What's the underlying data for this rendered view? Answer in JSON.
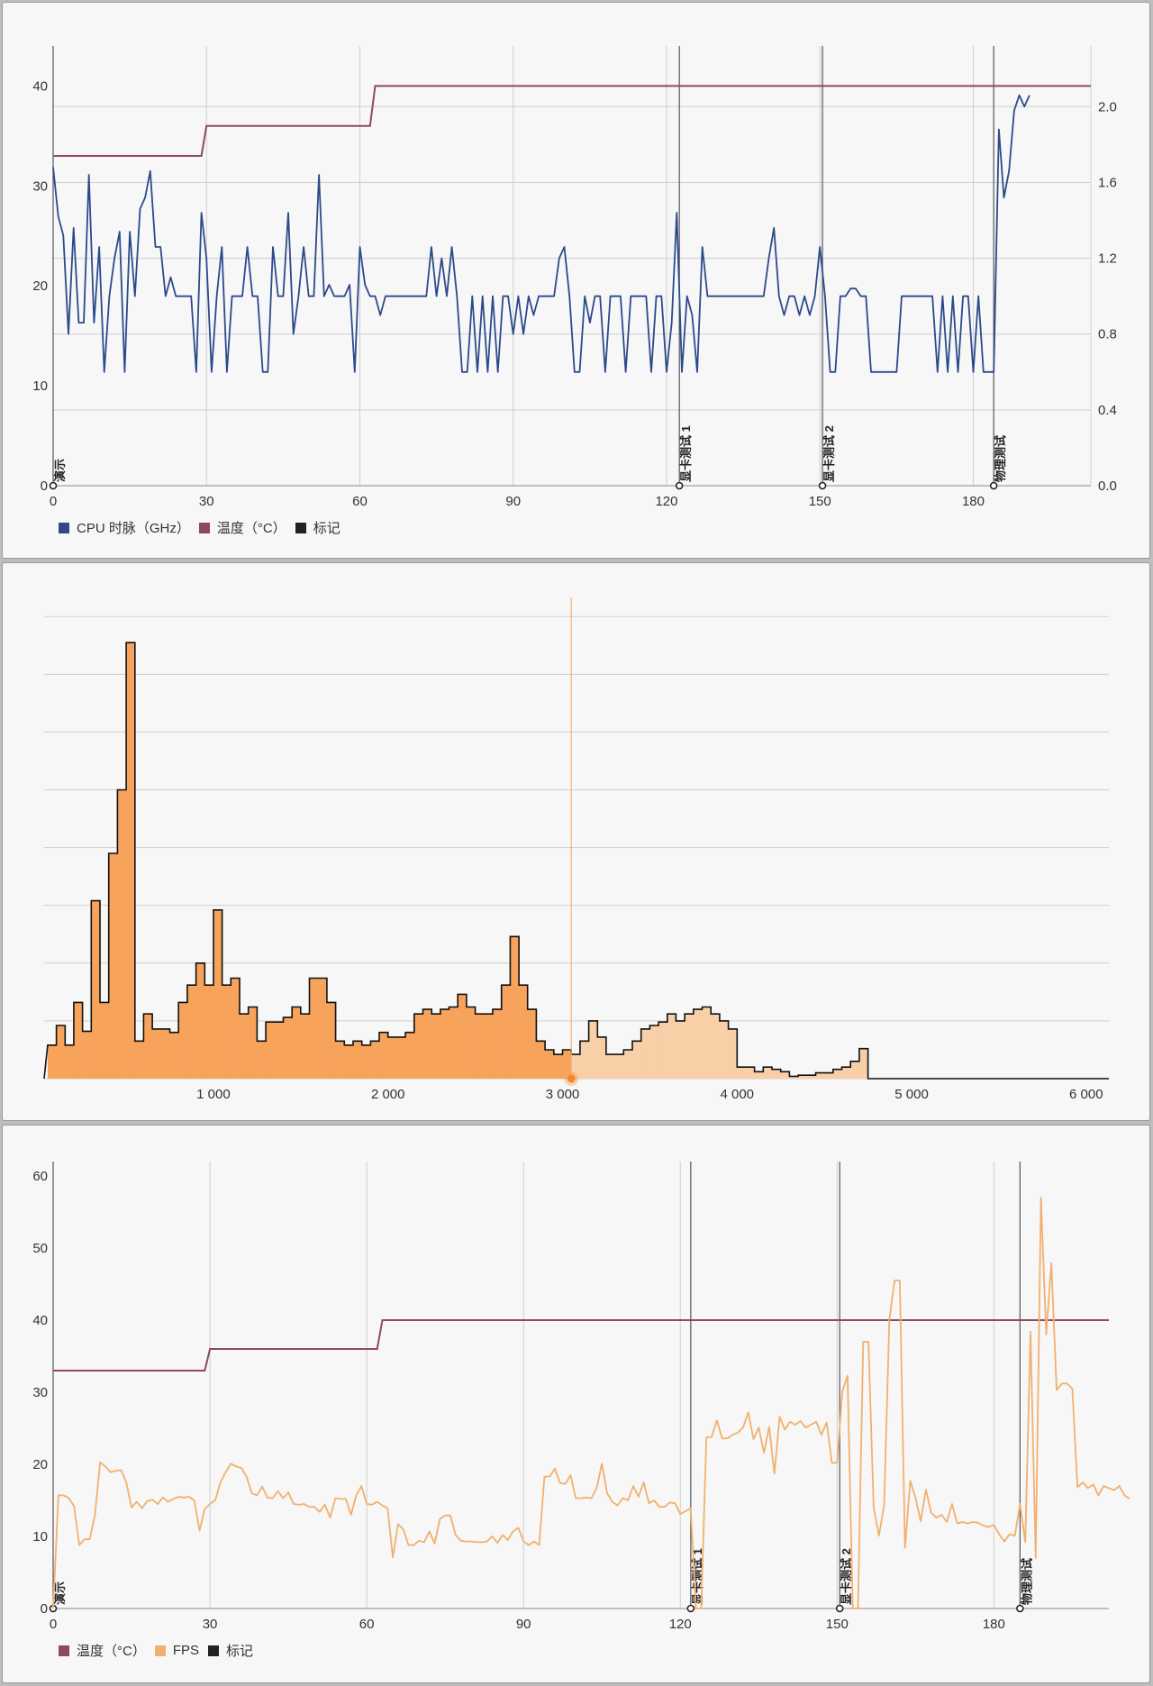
{
  "colors": {
    "cpu": "#2b4a8b",
    "temperature": "#8e4a5a",
    "marker": "#222222",
    "fps": "#f2b06e",
    "hist_dark": "#f7a35c",
    "hist_light": "#f9cfa7",
    "grid": "#cfcfcf"
  },
  "legend_top": [
    {
      "label": "CPU 时脉（GHz）",
      "color": "#2b4a8b"
    },
    {
      "label": "温度（°C）",
      "color": "#8e4a5a"
    },
    {
      "label": "标记",
      "color": "#222222"
    }
  ],
  "legend_bottom": [
    {
      "label": "温度（°C）",
      "color": "#8e4a5a"
    },
    {
      "label": "FPS",
      "color": "#f2b06e"
    },
    {
      "label": "标记",
      "color": "#222222"
    }
  ],
  "chart_data": [
    {
      "type": "line",
      "x_ticks": [
        "0",
        "30",
        "60",
        "90",
        "120",
        "150",
        "180"
      ],
      "xlim": [
        0,
        203
      ],
      "y_left_ticks": [
        "0",
        "10",
        "20",
        "30",
        "40"
      ],
      "ylim_left": [
        0,
        44
      ],
      "y_right_ticks": [
        "0.0",
        "0.4",
        "0.8",
        "1.2",
        "1.6",
        "2.0"
      ],
      "ylim_right": [
        0,
        2.32
      ],
      "grid": true,
      "legend_position": "bottom-left",
      "markers": [
        {
          "x": 0,
          "label": "演示"
        },
        {
          "x": 122.5,
          "label": "显卡测试 1"
        },
        {
          "x": 150.5,
          "label": "显卡测试 2"
        },
        {
          "x": 184,
          "label": "物理测试"
        }
      ],
      "series": [
        {
          "name": "温度（°C）",
          "axis": "left",
          "x": [
            0,
            29,
            30,
            62,
            63,
            203
          ],
          "values": [
            33,
            33,
            36,
            36,
            40,
            40
          ]
        },
        {
          "name": "CPU 时脉（GHz）",
          "axis": "right",
          "values": [
            1.68,
            1.42,
            1.32,
            0.8,
            1.36,
            0.86,
            0.86,
            1.64,
            0.86,
            1.26,
            0.6,
            1.0,
            1.2,
            1.34,
            0.6,
            1.34,
            1.0,
            1.46,
            1.52,
            1.66,
            1.26,
            1.26,
            1.0,
            1.1,
            1.0,
            1.0,
            1.0,
            1.0,
            0.6,
            1.44,
            1.2,
            0.6,
            1.0,
            1.26,
            0.6,
            1.0,
            1.0,
            1.0,
            1.26,
            1.0,
            1.0,
            0.6,
            0.6,
            1.26,
            1.0,
            1.0,
            1.44,
            0.8,
            1.0,
            1.26,
            1.0,
            1.0,
            1.64,
            1.0,
            1.06,
            1.0,
            1.0,
            1.0,
            1.06,
            0.6,
            1.26,
            1.06,
            1.0,
            1.0,
            0.9,
            1.0,
            1.0,
            1.0,
            1.0,
            1.0,
            1.0,
            1.0,
            1.0,
            1.0,
            1.26,
            1.0,
            1.2,
            1.0,
            1.26,
            1.0,
            0.6,
            0.6,
            1.0,
            0.6,
            1.0,
            0.6,
            1.0,
            0.6,
            1.0,
            1.0,
            0.8,
            1.0,
            0.8,
            1.0,
            0.9,
            1.0,
            1.0,
            1.0,
            1.0,
            1.2,
            1.26,
            1.0,
            0.6,
            0.6,
            1.0,
            0.86,
            1.0,
            1.0,
            0.6,
            1.0,
            1.0,
            1.0,
            0.6,
            1.0,
            1.0,
            1.0,
            1.0,
            0.6,
            1.0,
            1.0,
            0.6,
            0.86,
            1.44,
            0.6,
            1.0,
            0.9,
            0.6,
            1.26,
            1.0,
            1.0,
            1.0,
            1.0,
            1.0,
            1.0,
            1.0,
            1.0,
            1.0,
            1.0,
            1.0,
            1.0,
            1.2,
            1.36,
            1.0,
            0.9,
            1.0,
            1.0,
            0.9,
            1.0,
            0.9,
            1.0,
            1.26,
            1.0,
            0.6,
            0.6,
            1.0,
            1.0,
            1.04,
            1.04,
            1.0,
            1.0,
            0.6,
            0.6,
            0.6,
            0.6,
            0.6,
            0.6,
            1.0,
            1.0,
            1.0,
            1.0,
            1.0,
            1.0,
            1.0,
            0.6,
            1.0,
            0.6,
            1.0,
            0.6,
            1.0,
            1.0,
            0.6,
            1.0,
            0.6,
            0.6,
            0.6,
            1.88,
            1.52,
            1.66,
            1.98,
            2.06,
            2.0,
            2.06
          ]
        }
      ]
    },
    {
      "type": "area",
      "x_ticks": [
        "1 000",
        "2 000",
        "3 000",
        "4 000",
        "5 000",
        "6 000"
      ],
      "xlim": [
        30,
        6130
      ],
      "ylim": [
        0,
        8.3
      ],
      "grid": true,
      "highlight_x": 3050,
      "bin_width": 50,
      "values": [
        0.58,
        0.92,
        0.58,
        1.32,
        0.82,
        3.08,
        1.32,
        3.9,
        5.0,
        7.55,
        0.65,
        1.12,
        0.86,
        0.86,
        0.8,
        1.32,
        1.62,
        2.0,
        1.62,
        2.92,
        1.62,
        1.74,
        1.12,
        1.24,
        0.65,
        0.98,
        0.98,
        1.06,
        1.24,
        1.12,
        1.74,
        1.74,
        1.32,
        0.65,
        0.58,
        0.65,
        0.58,
        0.65,
        0.8,
        0.72,
        0.72,
        0.8,
        1.12,
        1.2,
        1.12,
        1.2,
        1.24,
        1.46,
        1.24,
        1.12,
        1.12,
        1.2,
        1.62,
        2.46,
        1.62,
        1.2,
        0.65,
        0.5,
        0.42,
        0.5,
        0.42,
        0.65,
        1.0,
        0.72,
        0.42,
        0.42,
        0.5,
        0.65,
        0.86,
        0.92,
        0.98,
        1.12,
        1.0,
        1.12,
        1.2,
        1.24,
        1.12,
        1.0,
        0.86,
        0.2,
        0.2,
        0.12,
        0.2,
        0.16,
        0.12,
        0.04,
        0.06,
        0.06,
        0.1,
        0.1,
        0.16,
        0.2,
        0.3,
        0.52
      ],
      "values_after_highlight": []
    },
    {
      "type": "line",
      "x_ticks": [
        "0",
        "30",
        "60",
        "90",
        "120",
        "150",
        "180"
      ],
      "xlim": [
        0,
        202
      ],
      "y_ticks": [
        "0",
        "10",
        "20",
        "30",
        "40",
        "50",
        "60"
      ],
      "ylim": [
        0,
        62
      ],
      "grid": true,
      "legend_position": "bottom-left",
      "markers": [
        {
          "x": 0,
          "label": "演示"
        },
        {
          "x": 122,
          "label": "显卡测试 1"
        },
        {
          "x": 150.5,
          "label": "显卡测试 2"
        },
        {
          "x": 185,
          "label": "物理测试"
        }
      ],
      "series": [
        {
          "name": "温度（°C）",
          "x": [
            0,
            29,
            30,
            62,
            63,
            202
          ],
          "values": [
            33,
            33,
            36,
            36,
            40,
            40
          ]
        },
        {
          "name": "FPS",
          "values": [
            0,
            15.7,
            15.7,
            15.3,
            14.2,
            8.8,
            9.6,
            9.6,
            13,
            20.3,
            19.7,
            18.9,
            19.1,
            19.2,
            17.5,
            14,
            14.8,
            13.9,
            14.9,
            15.1,
            14.5,
            15.4,
            14.8,
            15.2,
            15.5,
            15.4,
            15.5,
            15,
            10.8,
            13.8,
            14.5,
            15,
            17.5,
            18.9,
            20.1,
            19.7,
            19.5,
            18.3,
            16,
            15.7,
            16.9,
            15.4,
            15.3,
            16.3,
            15.3,
            16.1,
            14.5,
            14.4,
            14.5,
            14.1,
            14.1,
            13.4,
            14.4,
            12.6,
            15.3,
            15.2,
            15.2,
            13,
            15.7,
            17,
            14.5,
            14.4,
            14.8,
            14.3,
            13.9,
            7.1,
            11.7,
            11,
            8.8,
            8.8,
            9.4,
            9.2,
            10.7,
            9,
            12.4,
            12.9,
            12.9,
            10.2,
            9.4,
            9.3,
            9.3,
            9.2,
            9.2,
            9.3,
            10,
            9.1,
            10.2,
            9.5,
            10.7,
            11.2,
            9.3,
            8.8,
            9.3,
            8.8,
            18.3,
            18.3,
            19.4,
            17.4,
            17.3,
            18.5,
            15.3,
            15.3,
            15.4,
            15.3,
            16.7,
            20.1,
            16,
            14.8,
            14.3,
            15.3,
            15,
            17,
            15.5,
            17.5,
            14.6,
            15,
            14.1,
            14.1,
            14.7,
            14.6,
            13.1,
            13.5,
            13.9,
            0,
            0,
            23.7,
            23.8,
            26.1,
            23.6,
            23.6,
            24.1,
            24.4,
            25.1,
            27.2,
            23.5,
            25.1,
            21.6,
            25.2,
            18.7,
            26.6,
            24.8,
            25.9,
            25.5,
            26,
            25.1,
            25.5,
            25.9,
            24.1,
            25.8,
            20.2,
            20.2,
            30.1,
            32.3,
            0,
            0,
            37,
            37,
            14,
            10.1,
            14.3,
            40,
            45.5,
            45.5,
            8.4,
            17.7,
            15.4,
            12.1,
            16.5,
            13.3,
            12.6,
            13,
            12,
            14.5,
            11.8,
            12,
            11.8,
            12,
            11.9,
            11.5,
            11.3,
            11.6,
            10.3,
            9.3,
            10.3,
            10.1,
            14.5,
            9.2,
            38.4,
            7,
            57,
            38,
            47.9,
            30.3,
            31.2,
            31.2,
            30.5,
            16.8,
            17.5,
            16.7,
            17.2,
            15.7,
            17,
            16.7,
            16.4,
            17,
            15.7,
            15.2
          ]
        }
      ]
    }
  ]
}
